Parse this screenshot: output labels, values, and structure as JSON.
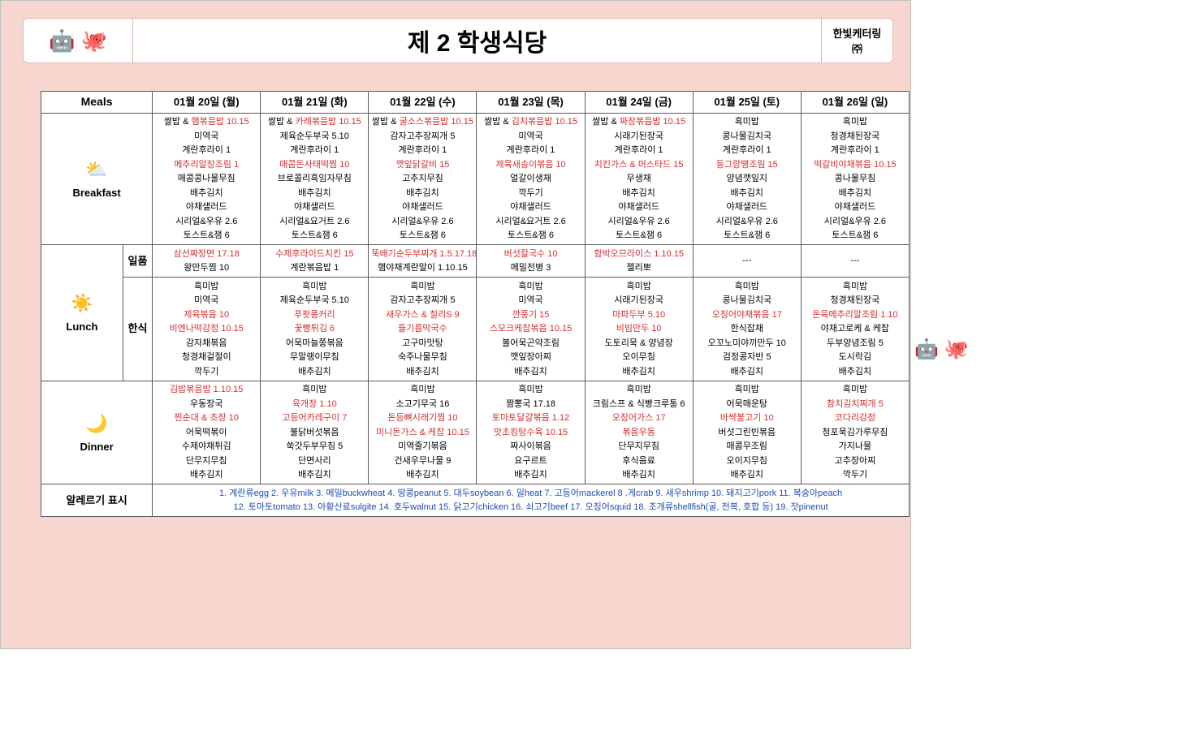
{
  "header": {
    "title": "제 2 학생식당",
    "brand_top": "한빛케터링",
    "brand_sub": "㈜"
  },
  "columns": {
    "meals_label": "Meals",
    "dates": [
      "01월 20일 (월)",
      "01월 21일 (화)",
      "01월 22일 (수)",
      "01월 23일 (목)",
      "01월 24일 (금)",
      "01월 25일 (토)",
      "01월 26일 (일)"
    ]
  },
  "meal_labels": {
    "breakfast": "Breakfast",
    "lunch": "Lunch",
    "dinner": "Dinner",
    "ilpum": "일품",
    "hansik": "한식",
    "allergy": "알레르기 표시"
  },
  "placeholder_dash": "---",
  "breakfast": [
    {
      "items": [
        {
          "t": "쌀밥 & ",
          "r": "햄볶음밥 10.15"
        },
        {
          "t": "미역국"
        },
        {
          "t": "계란후라이 1"
        },
        {
          "t": "메추리알장조림 1",
          "red": true
        },
        {
          "t": "매콤콩나물무침"
        },
        {
          "t": "배추김치"
        },
        {
          "t": "야채샐러드"
        },
        {
          "t": "시리얼&우유 2.6"
        },
        {
          "t": "토스트&잼 6"
        }
      ]
    },
    {
      "items": [
        {
          "t": "쌀밥 & ",
          "r": "카레볶음밥 10.15"
        },
        {
          "t": "제육순두부국 5.10"
        },
        {
          "t": "계란후라이 1"
        },
        {
          "t": "매콤돈사태떡찜 10",
          "red": true
        },
        {
          "t": "브로콜리흑임자무침"
        },
        {
          "t": "배추김치"
        },
        {
          "t": "야채샐러드"
        },
        {
          "t": "시리얼&요거트 2.6"
        },
        {
          "t": "토스트&잼 6"
        }
      ]
    },
    {
      "items": [
        {
          "t": "쌀밥 & ",
          "r": "굴소스볶음밥 10.15"
        },
        {
          "t": "감자고추장찌개 5"
        },
        {
          "t": "계란후라이 1"
        },
        {
          "t": "깻잎닭갈비 15",
          "red": true
        },
        {
          "t": "고추지무침"
        },
        {
          "t": "배추김치"
        },
        {
          "t": "야채샐러드"
        },
        {
          "t": "시리얼&우유 2.6"
        },
        {
          "t": "토스트&잼 6"
        }
      ]
    },
    {
      "items": [
        {
          "t": "쌀밥 & ",
          "r": "김치볶음밥 10.15"
        },
        {
          "t": "미역국"
        },
        {
          "t": "계란후라이 1"
        },
        {
          "t": "제육새송이볶음 10",
          "red": true
        },
        {
          "t": "얼갈이생채"
        },
        {
          "t": "깍두기"
        },
        {
          "t": "야채샐러드"
        },
        {
          "t": "시리얼&요거트 2.6"
        },
        {
          "t": "토스트&잼 6"
        }
      ]
    },
    {
      "items": [
        {
          "t": "쌀밥 & ",
          "r": "짜장볶음밥 10.15"
        },
        {
          "t": "시래기된장국"
        },
        {
          "t": "계란후라이 1"
        },
        {
          "t": "치킨가스 & 머스타드 15",
          "red": true
        },
        {
          "t": "무생채"
        },
        {
          "t": "배추김치"
        },
        {
          "t": "야채샐러드"
        },
        {
          "t": "시리얼&우유 2.6"
        },
        {
          "t": "토스트&잼 6"
        }
      ]
    },
    {
      "items": [
        {
          "t": "흑미밥"
        },
        {
          "t": "콩나물김치국"
        },
        {
          "t": "계란후라이 1"
        },
        {
          "t": "둥그랑땡조림 15",
          "red": true
        },
        {
          "t": "양념깻잎지"
        },
        {
          "t": "배추김치"
        },
        {
          "t": "야채샐러드"
        },
        {
          "t": "시리얼&우유 2.6"
        },
        {
          "t": "토스트&잼 6"
        }
      ]
    },
    {
      "items": [
        {
          "t": "흑미밥"
        },
        {
          "t": "청경채된장국"
        },
        {
          "t": "계란후라이 1"
        },
        {
          "t": "떡갈비야채볶음 10.15",
          "red": true
        },
        {
          "t": "콩나물무침"
        },
        {
          "t": "배추김치"
        },
        {
          "t": "야채샐러드"
        },
        {
          "t": "시리얼&우유 2.6"
        },
        {
          "t": "토스트&잼 6"
        }
      ]
    }
  ],
  "lunch_ilpum": [
    {
      "items": [
        {
          "t": "삼선짜장면 17.18",
          "red": true
        },
        {
          "t": "왕만두찜 10"
        }
      ]
    },
    {
      "items": [
        {
          "t": "수제후라이드치킨 15",
          "red": true
        },
        {
          "t": "계란볶음밥 1"
        }
      ]
    },
    {
      "items": [
        {
          "t": "뚝배기순두부찌개 1.5.17.18",
          "red": true
        },
        {
          "t": "햄야채계란말이 1.10.15"
        }
      ]
    },
    {
      "items": [
        {
          "t": "버섯칼국수 10",
          "red": true
        },
        {
          "t": "메밀전병 3"
        }
      ]
    },
    {
      "items": [
        {
          "t": "함박오므라이스 1.10.15",
          "red": true
        },
        {
          "t": "젤리뽀"
        }
      ]
    }
  ],
  "lunch_hansik": [
    {
      "items": [
        {
          "t": "흑미밥"
        },
        {
          "t": "미역국"
        },
        {
          "t": "제육볶음 10",
          "red": true
        },
        {
          "t": "비엔나떡강정 10.15",
          "red": true
        },
        {
          "t": "감자채볶음"
        },
        {
          "t": "청경채겉절이"
        },
        {
          "t": "깍두기"
        }
      ]
    },
    {
      "items": [
        {
          "t": "흑미밥"
        },
        {
          "t": "제육순두부국 5.10"
        },
        {
          "t": "푸팟퐁커리",
          "red": true
        },
        {
          "t": "꽃빵튀김 6",
          "red": true
        },
        {
          "t": "어묵마늘쫑볶음"
        },
        {
          "t": "무말랭이무침"
        },
        {
          "t": "배추김치"
        }
      ]
    },
    {
      "items": [
        {
          "t": "흑미밥"
        },
        {
          "t": "감자고추장찌개 5"
        },
        {
          "t": "새우가스 & 칠리S 9",
          "red": true
        },
        {
          "t": "들기름막국수",
          "red": true
        },
        {
          "t": "고구마맛탕"
        },
        {
          "t": "숙주나물무침"
        },
        {
          "t": "배추김치"
        }
      ]
    },
    {
      "items": [
        {
          "t": "흑미밥"
        },
        {
          "t": "미역국"
        },
        {
          "t": "깐풍기 15",
          "red": true
        },
        {
          "t": "스모크케찹볶음 10.15",
          "red": true
        },
        {
          "t": "볼어묵곤약조림"
        },
        {
          "t": "깻잎장아찌"
        },
        {
          "t": "배추김치"
        }
      ]
    },
    {
      "items": [
        {
          "t": "흑미밥"
        },
        {
          "t": "시래기된장국"
        },
        {
          "t": "마파두부 5.10",
          "red": true
        },
        {
          "t": "비빔만두 10",
          "red": true
        },
        {
          "t": "도토리묵 & 양념장"
        },
        {
          "t": "오이무침"
        },
        {
          "t": "배추김치"
        }
      ]
    },
    {
      "items": [
        {
          "t": "흑미밥"
        },
        {
          "t": "콩나물김치국"
        },
        {
          "t": "오징어야채볶음 17",
          "red": true
        },
        {
          "t": "한식잡채"
        },
        {
          "t": "오꼬노미야끼만두 10"
        },
        {
          "t": "검정콩자반 5"
        },
        {
          "t": "배추김치"
        }
      ]
    },
    {
      "items": [
        {
          "t": "흑미밥"
        },
        {
          "t": "청경채된장국"
        },
        {
          "t": "돈육메추리알조림 1.10",
          "red": true
        },
        {
          "t": "야채고로케 & 케찹"
        },
        {
          "t": "두부양념조림 5"
        },
        {
          "t": "도시락김"
        },
        {
          "t": "배추김치"
        }
      ]
    }
  ],
  "dinner": [
    {
      "items": [
        {
          "t": "김밥볶음밥 1.10.15",
          "red": true
        },
        {
          "t": "우동장국"
        },
        {
          "t": "찐순대 & 초장 10",
          "red": true
        },
        {
          "t": "어묵떡볶이"
        },
        {
          "t": "수제야채튀김"
        },
        {
          "t": "단무지무침"
        },
        {
          "t": "배추김치"
        }
      ]
    },
    {
      "items": [
        {
          "t": "흑미밥"
        },
        {
          "t": "육개장 1.10",
          "red": true
        },
        {
          "t": "고등어카레구이 7",
          "red": true
        },
        {
          "t": "불닭버섯볶음"
        },
        {
          "t": "쑥갓두부무침 5"
        },
        {
          "t": "단면사리"
        },
        {
          "t": "배추김치"
        }
      ]
    },
    {
      "items": [
        {
          "t": "흑미밥"
        },
        {
          "t": "소고기무국 16"
        },
        {
          "t": "돈등뼈시래기찜 10",
          "red": true
        },
        {
          "t": "미니돈가스 & 케찹 10.15",
          "red": true
        },
        {
          "t": "미역줄기볶음"
        },
        {
          "t": "건새우무나물 9"
        },
        {
          "t": "배추김치"
        }
      ]
    },
    {
      "items": [
        {
          "t": "흑미밥"
        },
        {
          "t": "짬뽕국 17.18"
        },
        {
          "t": "토마토달걀볶음 1.12",
          "red": true
        },
        {
          "t": "맛초킹탕수육 10.15",
          "red": true
        },
        {
          "t": "짜사이볶음"
        },
        {
          "t": "요구르트"
        },
        {
          "t": "배추김치"
        }
      ]
    },
    {
      "items": [
        {
          "t": "흑미밥"
        },
        {
          "t": "크림스프 & 식빵크루통 6"
        },
        {
          "t": "오징어가스 17",
          "red": true
        },
        {
          "t": "볶음우동",
          "red": true
        },
        {
          "t": "단무지무침"
        },
        {
          "t": "후식음료"
        },
        {
          "t": "배추김치"
        }
      ]
    },
    {
      "items": [
        {
          "t": "흑미밥"
        },
        {
          "t": "어묵매운탕"
        },
        {
          "t": "바싹불고기 10",
          "red": true
        },
        {
          "t": "버섯그린빈볶음"
        },
        {
          "t": "매콤무조림"
        },
        {
          "t": "오이지무침"
        },
        {
          "t": "배추김치"
        }
      ]
    },
    {
      "items": [
        {
          "t": "흑미밥"
        },
        {
          "t": "참치김치찌개 5",
          "red": true
        },
        {
          "t": "코다리강정",
          "red": true
        },
        {
          "t": "청포묵김가루무침"
        },
        {
          "t": "가지나물"
        },
        {
          "t": "고추장아찌"
        },
        {
          "t": "깍두기"
        }
      ]
    }
  ],
  "allergy_text": {
    "line1": "1. 계란류egg 2. 우유milk 3. 메밀buckwheat 4. 땅콩peanut 5. 대두soybean 6. 밀heat 7. 고등어mackerel 8 .게crab 9. 새우shrimp 10. 돼지고기pork 11. 복숭아peach",
    "line2": "12. 토마토tomato 13. 아황산료sulgite 14. 호두walnut 15. 닭고기chicken 16. 쇠고기beef 17. 오징어squid 18. 조개류shellfish(굴, 전복, 호합 등) 19. 잣pinenut"
  },
  "colors": {
    "pink_bg": "#f8d6d0",
    "red_text": "#d62e2e",
    "border": "#5a5a5a",
    "allergy_blue": "#1a4db3"
  }
}
